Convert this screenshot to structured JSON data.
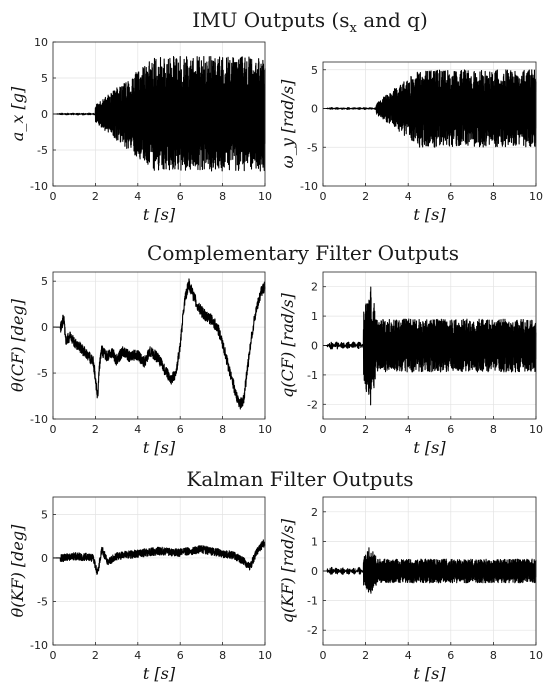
{
  "sections": [
    {
      "title": "IMU Outputs (s",
      "title_sub": "x",
      "title_rest": " and q)"
    },
    {
      "title": "Complementary Filter Outputs"
    },
    {
      "title": "Kalman Filter Outputs"
    }
  ],
  "chart_data": [
    {
      "id": "ax",
      "type": "line",
      "xlabel": "t [s]",
      "ylabel": "a_x [g]",
      "xlim": [
        0,
        10
      ],
      "ylim": [
        -10,
        10
      ],
      "xticks": [
        0,
        2,
        4,
        6,
        8,
        10
      ],
      "yticks": [
        -10,
        -5,
        0,
        5,
        10
      ],
      "grid": true,
      "signal": {
        "quiet_until": 2.0,
        "ramp_until": 4.8,
        "max_amplitude": 8.0,
        "baseline": 0
      }
    },
    {
      "id": "wy",
      "type": "line",
      "xlabel": "t [s]",
      "ylabel": "ω_y [rad/s]",
      "xlim": [
        0,
        10
      ],
      "ylim": [
        -10,
        6
      ],
      "xticks": [
        0,
        2,
        4,
        6,
        8,
        10
      ],
      "yticks": [
        -10,
        -5,
        0,
        5
      ],
      "grid": true,
      "signal": {
        "quiet_until": 2.5,
        "ramp_until": 4.5,
        "max_amplitude": 5.0,
        "baseline": 0
      }
    },
    {
      "id": "theta_cf",
      "type": "line",
      "xlabel": "t [s]",
      "ylabel": "θ(CF) [deg]",
      "xlim": [
        0,
        10
      ],
      "ylim": [
        -10,
        6
      ],
      "xticks": [
        0,
        2,
        4,
        6,
        8,
        10
      ],
      "yticks": [
        -10,
        -5,
        0,
        5
      ],
      "grid": true,
      "x": [
        0,
        0.4,
        0.5,
        0.6,
        0.8,
        1.0,
        1.3,
        1.6,
        1.9,
        2.0,
        2.1,
        2.2,
        2.3,
        2.5,
        2.8,
        3.0,
        3.3,
        3.6,
        4.0,
        4.3,
        4.6,
        5.0,
        5.3,
        5.6,
        5.8,
        6.0,
        6.2,
        6.4,
        6.6,
        6.9,
        7.2,
        7.5,
        7.8,
        8.0,
        8.3,
        8.6,
        8.8,
        9.0,
        9.2,
        9.4,
        9.6,
        9.8,
        10.0
      ],
      "values": [
        0,
        0,
        1.2,
        -1.5,
        -1.0,
        -1.6,
        -2.2,
        -3.0,
        -3.8,
        -5.5,
        -7.8,
        -4.0,
        -2.5,
        -3.2,
        -2.8,
        -3.6,
        -2.6,
        -3.2,
        -3.0,
        -3.8,
        -2.6,
        -3.5,
        -4.8,
        -5.7,
        -5.0,
        -2.0,
        2.8,
        4.8,
        3.5,
        2.0,
        1.2,
        0.8,
        -0.3,
        -1.8,
        -4.5,
        -7.0,
        -8.5,
        -7.8,
        -4.0,
        -0.5,
        2.0,
        3.8,
        4.5
      ],
      "noise": 0.6
    },
    {
      "id": "q_cf",
      "type": "line",
      "xlabel": "t [s]",
      "ylabel": "q(CF) [rad/s]",
      "xlim": [
        0,
        10
      ],
      "ylim": [
        -2.5,
        2.5
      ],
      "xticks": [
        0,
        2,
        4,
        6,
        8,
        10
      ],
      "yticks": [
        -2,
        -1,
        0,
        1,
        2
      ],
      "grid": true,
      "signal": {
        "quiet_until": 1.9,
        "burst_at": 2.2,
        "burst_amplitude": 2.2,
        "max_amplitude": 0.9,
        "baseline": 0
      }
    },
    {
      "id": "theta_kf",
      "type": "line",
      "xlabel": "t [s]",
      "ylabel": "θ(KF) [deg]",
      "xlim": [
        0,
        10
      ],
      "ylim": [
        -10,
        7
      ],
      "xticks": [
        0,
        2,
        4,
        6,
        8,
        10
      ],
      "yticks": [
        -10,
        -5,
        0,
        5
      ],
      "grid": true,
      "x": [
        0,
        0.5,
        1.0,
        1.5,
        1.9,
        2.1,
        2.3,
        2.6,
        3.0,
        4.0,
        5.0,
        6.0,
        7.0,
        8.0,
        8.5,
        9.0,
        9.3,
        9.6,
        9.9,
        10.0
      ],
      "values": [
        0,
        0,
        0.2,
        0.1,
        0,
        -1.8,
        1.0,
        -0.5,
        0.2,
        0.5,
        0.8,
        0.6,
        1.0,
        0.5,
        0.3,
        -0.4,
        -1.0,
        0.6,
        1.6,
        1.8
      ],
      "noise": 0.45
    },
    {
      "id": "q_kf",
      "type": "line",
      "xlabel": "t [s]",
      "ylabel": "q(KF) [rad/s]",
      "xlim": [
        0,
        10
      ],
      "ylim": [
        -2.5,
        2.5
      ],
      "xticks": [
        0,
        2,
        4,
        6,
        8,
        10
      ],
      "yticks": [
        -2,
        -1,
        0,
        1,
        2
      ],
      "grid": true,
      "signal": {
        "quiet_until": 1.9,
        "burst_at": 2.2,
        "burst_amplitude": 0.9,
        "max_amplitude": 0.4,
        "baseline": 0
      }
    }
  ]
}
